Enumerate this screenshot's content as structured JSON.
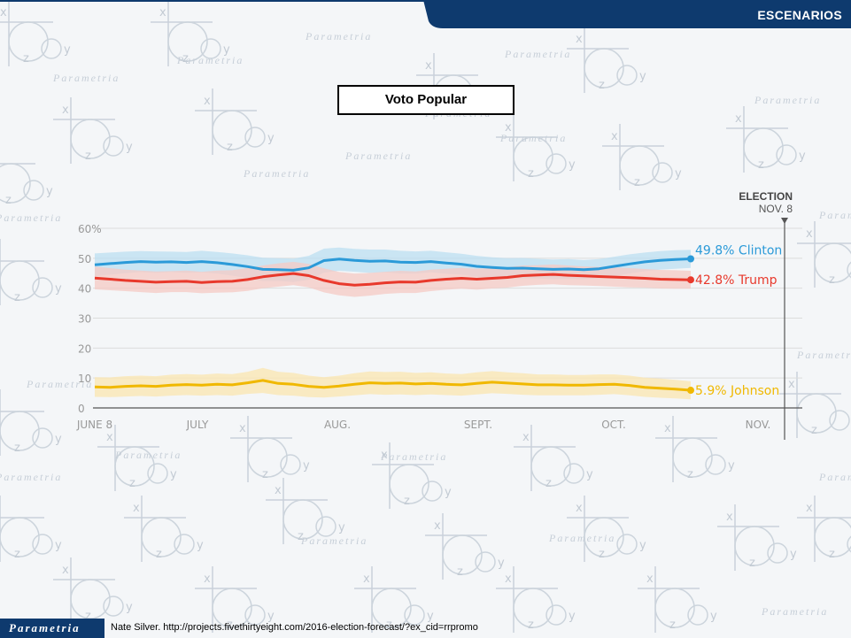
{
  "header": {
    "title": "ESCENARIOS",
    "color": "#0e3a6e"
  },
  "watermark": {
    "brand": "Parametria"
  },
  "footer": {
    "logo_text": "Parametria",
    "source": "Nate Silver. http://projects.fivethirtyeight.com/2016-election-forecast/?ex_cid=rrpromo"
  },
  "chart_data": {
    "type": "line",
    "title": "Voto Popular",
    "x_labels": [
      "JUNE 8",
      "JULY",
      "AUG.",
      "SEPT.",
      "OCT.",
      "NOV."
    ],
    "y_ticks": [
      "0",
      "10",
      "20",
      "30",
      "40",
      "50",
      "60%"
    ],
    "ylim": [
      0,
      60
    ],
    "election_marker": {
      "line1": "ELECTION",
      "line2": "NOV. 8"
    },
    "grid": true,
    "series": [
      {
        "name": "Clinton",
        "label": "49.8% Clinton",
        "color": "#2b9ad8",
        "band_color": "#bcdff2",
        "values": [
          47.8,
          48.2,
          48.6,
          48.9,
          48.7,
          48.8,
          48.6,
          48.9,
          48.5,
          47.9,
          47.2,
          46.3,
          46.2,
          46.0,
          46.8,
          49.2,
          49.7,
          49.3,
          49.0,
          49.1,
          48.7,
          48.6,
          48.9,
          48.4,
          48.0,
          47.3,
          46.9,
          46.6,
          46.7,
          46.5,
          46.3,
          46.4,
          46.2,
          46.5,
          47.3,
          48.1,
          48.8,
          49.3,
          49.6,
          49.8
        ],
        "band": [
          3.8,
          3.7,
          3.6,
          3.5,
          3.6,
          3.4,
          3.5,
          3.6,
          3.6,
          3.7,
          3.8,
          3.9,
          3.8,
          3.9,
          4.0,
          4.0,
          3.9,
          3.8,
          3.9,
          3.8,
          3.8,
          3.7,
          3.6,
          3.6,
          3.5,
          3.5,
          3.4,
          3.4,
          3.4,
          3.3,
          3.3,
          3.3,
          3.2,
          3.2,
          3.2,
          3.2,
          3.1,
          3.1,
          3.1,
          3.0
        ]
      },
      {
        "name": "Trump",
        "label": "42.8% Trump",
        "color": "#e8392c",
        "band_color": "#f6c9c4",
        "values": [
          43.4,
          43.0,
          42.6,
          42.3,
          42.0,
          42.2,
          42.3,
          41.9,
          42.2,
          42.3,
          42.9,
          43.8,
          44.4,
          44.9,
          44.2,
          42.6,
          41.5,
          41.0,
          41.3,
          41.8,
          42.1,
          42.0,
          42.6,
          43.0,
          43.3,
          43.0,
          43.3,
          43.6,
          44.2,
          44.4,
          44.6,
          44.3,
          44.1,
          43.9,
          43.7,
          43.5,
          43.3,
          43.0,
          42.9,
          42.8
        ],
        "band": [
          3.8,
          3.7,
          3.6,
          3.6,
          3.6,
          3.5,
          3.6,
          3.6,
          3.7,
          3.7,
          3.8,
          3.8,
          3.9,
          3.9,
          3.9,
          4.0,
          3.9,
          3.9,
          3.8,
          3.7,
          3.7,
          3.6,
          3.6,
          3.5,
          3.5,
          3.5,
          3.4,
          3.4,
          3.4,
          3.3,
          3.3,
          3.3,
          3.2,
          3.2,
          3.2,
          3.2,
          3.1,
          3.1,
          3.1,
          3.0
        ]
      },
      {
        "name": "Johnson",
        "label": "5.9% Johnson",
        "color": "#f0b800",
        "band_color": "#fbe6b0",
        "values": [
          7.0,
          6.9,
          7.2,
          7.4,
          7.2,
          7.6,
          7.8,
          7.6,
          7.9,
          7.7,
          8.4,
          9.2,
          8.2,
          7.9,
          7.2,
          6.9,
          7.3,
          7.9,
          8.4,
          8.2,
          8.3,
          8.0,
          8.2,
          7.9,
          7.7,
          8.2,
          8.6,
          8.3,
          8.0,
          7.7,
          7.7,
          7.6,
          7.6,
          7.8,
          7.9,
          7.5,
          6.9,
          6.6,
          6.3,
          5.9
        ],
        "band": [
          3.3,
          3.3,
          3.4,
          3.4,
          3.4,
          3.5,
          3.5,
          3.5,
          3.6,
          3.6,
          3.7,
          4.2,
          3.9,
          3.8,
          3.6,
          3.4,
          3.5,
          3.7,
          3.8,
          3.8,
          3.8,
          3.7,
          3.7,
          3.6,
          3.6,
          3.7,
          3.7,
          3.6,
          3.6,
          3.5,
          3.5,
          3.4,
          3.4,
          3.4,
          3.3,
          3.3,
          3.2,
          3.2,
          3.1,
          3.0
        ]
      }
    ]
  }
}
